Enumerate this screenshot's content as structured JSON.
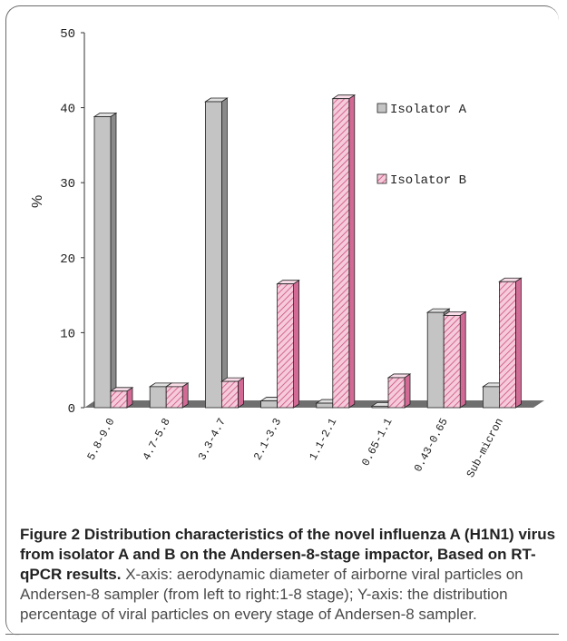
{
  "chart_data": {
    "type": "bar",
    "title": "",
    "xlabel": "",
    "ylabel": "%",
    "ylim": [
      0,
      50
    ],
    "yticks": [
      "0",
      "10",
      "20",
      "30",
      "40",
      "50"
    ],
    "categories": [
      "5.8-9.0",
      "4.7-5.8",
      "3.3-4.7",
      "2.1-3.3",
      "1.1-2.1",
      "0.65-1.1",
      "0.43-0.65",
      "Sub-micron"
    ],
    "series": [
      {
        "name": "Isolator A",
        "values": [
          38.8,
          2.8,
          40.8,
          0.9,
          0.6,
          0.2,
          12.7,
          2.8
        ]
      },
      {
        "name": "Isolator B",
        "values": [
          2.2,
          2.8,
          3.5,
          16.5,
          41.2,
          4.0,
          12.3,
          16.8
        ]
      }
    ],
    "legend_position": "right",
    "colors": {
      "Isolator A": "#c4c4c4",
      "Isolator B": "#f4c4d6",
      "Isolator B hatch": "#c8507e"
    }
  },
  "caption": {
    "bold": "Figure 2 Distribution characteristics of the novel influenza A (H1N1) virus from isolator A and B on the Andersen-8-stage impactor, Based on RT-qPCR results.",
    "text": " X-axis: aerodynamic diameter of airborne viral particles on Andersen-8 sampler (from left to right:1-8 stage); Y-axis: the distribution percentage of viral particles on every stage of Andersen-8 sampler."
  }
}
